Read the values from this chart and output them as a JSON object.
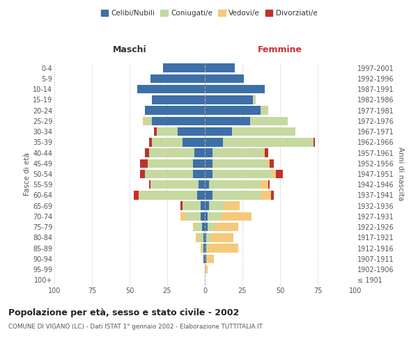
{
  "age_groups": [
    "100+",
    "95-99",
    "90-94",
    "85-89",
    "80-84",
    "75-79",
    "70-74",
    "65-69",
    "60-64",
    "55-59",
    "50-54",
    "45-49",
    "40-44",
    "35-39",
    "30-34",
    "25-29",
    "20-24",
    "15-19",
    "10-14",
    "5-9",
    "0-4"
  ],
  "birth_years": [
    "≤ 1901",
    "1902-1906",
    "1907-1911",
    "1912-1916",
    "1917-1921",
    "1922-1926",
    "1927-1931",
    "1932-1936",
    "1937-1941",
    "1942-1946",
    "1947-1951",
    "1952-1956",
    "1957-1961",
    "1962-1966",
    "1967-1971",
    "1972-1976",
    "1977-1981",
    "1982-1986",
    "1987-1991",
    "1992-1996",
    "1997-2001"
  ],
  "maschi": {
    "celibi": [
      0,
      0,
      1,
      1,
      1,
      2,
      3,
      3,
      5,
      4,
      8,
      8,
      7,
      15,
      18,
      35,
      40,
      35,
      45,
      36,
      28
    ],
    "coniugati": [
      0,
      0,
      0,
      1,
      3,
      5,
      10,
      12,
      38,
      32,
      32,
      30,
      30,
      20,
      14,
      5,
      0,
      0,
      0,
      0,
      0
    ],
    "vedovi": [
      0,
      0,
      0,
      1,
      2,
      1,
      3,
      0,
      1,
      0,
      0,
      0,
      0,
      0,
      0,
      1,
      0,
      0,
      0,
      0,
      0
    ],
    "divorziati": [
      0,
      0,
      0,
      0,
      0,
      0,
      0,
      1,
      3,
      1,
      3,
      5,
      3,
      2,
      2,
      0,
      0,
      0,
      0,
      0,
      0
    ]
  },
  "femmine": {
    "nubili": [
      0,
      0,
      1,
      1,
      1,
      2,
      2,
      3,
      5,
      3,
      5,
      5,
      5,
      12,
      18,
      30,
      37,
      32,
      40,
      26,
      20
    ],
    "coniugate": [
      0,
      0,
      0,
      1,
      3,
      5,
      9,
      10,
      32,
      34,
      40,
      36,
      34,
      60,
      42,
      25,
      5,
      2,
      0,
      0,
      0
    ],
    "vedove": [
      0,
      2,
      5,
      20,
      15,
      15,
      20,
      10,
      7,
      5,
      2,
      2,
      1,
      0,
      0,
      0,
      0,
      0,
      0,
      0,
      0
    ],
    "divorziate": [
      0,
      0,
      0,
      0,
      0,
      0,
      0,
      0,
      2,
      1,
      5,
      3,
      2,
      1,
      0,
      0,
      0,
      0,
      0,
      0,
      0
    ]
  },
  "colors": {
    "celibi_nubili": "#3d6fa8",
    "coniugati": "#c5d9a0",
    "vedovi": "#f5c97a",
    "divorziati": "#c0312b"
  },
  "title": "Popolazione per età, sesso e stato civile - 2002",
  "subtitle": "COMUNE DI VIGANÒ (LC) - Dati ISTAT 1° gennaio 2002 - Elaborazione TUTTITALIA.IT",
  "xlabel_maschi": "Maschi",
  "xlabel_femmine": "Femmine",
  "ylabel_left": "Fasce di età",
  "ylabel_right": "Anni di nascita",
  "xlim": 100,
  "legend_labels": [
    "Celibi/Nubili",
    "Coniugati/e",
    "Vedovi/e",
    "Divorziati/e"
  ],
  "background_color": "#ffffff",
  "grid_color": "#cccccc"
}
